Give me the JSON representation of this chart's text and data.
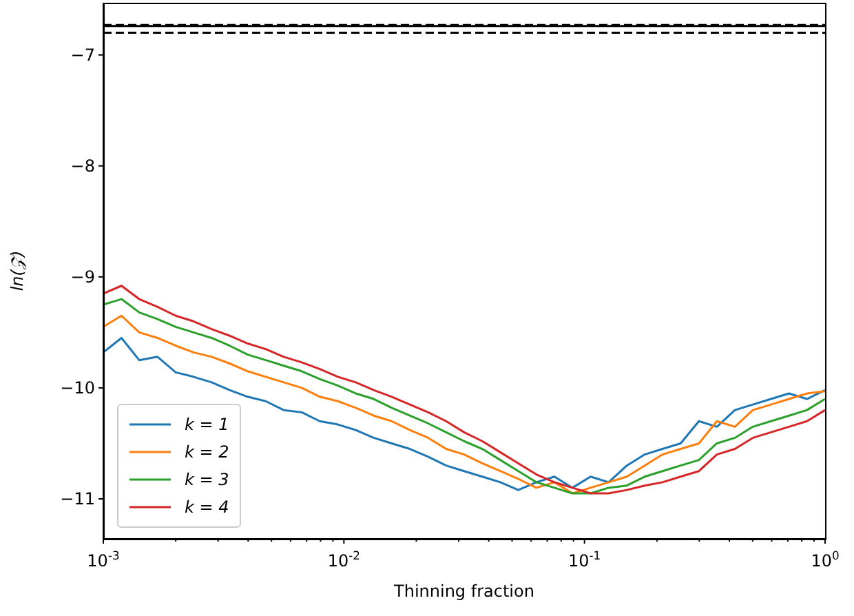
{
  "chart_data": {
    "type": "line",
    "xlabel": "Thinning fraction",
    "ylabel": "ln(𝒵)",
    "log": "x",
    "grid": false,
    "legend": "bottom left",
    "marker": "none",
    "line_style": "solid",
    "xlim": [
      0.001,
      1
    ],
    "ylim": [
      -11.36,
      -6.53
    ],
    "xticks": [
      {
        "value": 0.001,
        "label": "10$^{-3}$"
      },
      {
        "value": 0.002,
        "label": null
      },
      {
        "value": 0.003,
        "label": null
      },
      {
        "value": 0.004,
        "label": null
      },
      {
        "value": 0.005,
        "label": null
      },
      {
        "value": 0.006,
        "label": null
      },
      {
        "value": 0.007,
        "label": null
      },
      {
        "value": 0.008,
        "label": null
      },
      {
        "value": 0.009,
        "label": null
      },
      {
        "value": 0.01,
        "label": "10$^{-2}$"
      },
      {
        "value": 0.02,
        "label": null
      },
      {
        "value": 0.03,
        "label": null
      },
      {
        "value": 0.04,
        "label": null
      },
      {
        "value": 0.05,
        "label": null
      },
      {
        "value": 0.06,
        "label": null
      },
      {
        "value": 0.07,
        "label": null
      },
      {
        "value": 0.08,
        "label": null
      },
      {
        "value": 0.09,
        "label": null
      },
      {
        "value": 0.1,
        "label": "10$^{-1}$"
      },
      {
        "value": 0.2,
        "label": null
      },
      {
        "value": 0.3,
        "label": null
      },
      {
        "value": 0.4,
        "label": null
      },
      {
        "value": 0.5,
        "label": null
      },
      {
        "value": 0.6,
        "label": null
      },
      {
        "value": 0.7,
        "label": null
      },
      {
        "value": 0.8,
        "label": null
      },
      {
        "value": 0.9,
        "label": null
      },
      {
        "value": 1,
        "label": "10$^{0}$"
      }
    ],
    "yticks": [
      -11,
      -10,
      -9,
      -8,
      -7
    ],
    "x": [
      0.001,
      0.00119,
      0.00141,
      0.00168,
      0.002,
      0.00237,
      0.00282,
      0.00335,
      0.00398,
      0.00473,
      0.00562,
      0.00668,
      0.00794,
      0.00944,
      0.0112,
      0.0133,
      0.0158,
      0.0188,
      0.0224,
      0.0266,
      0.0316,
      0.0376,
      0.0447,
      0.0531,
      0.0631,
      0.075,
      0.0891,
      0.106,
      0.126,
      0.15,
      0.178,
      0.211,
      0.251,
      0.299,
      0.355,
      0.422,
      0.501,
      0.596,
      0.708,
      0.841,
      1.0
    ],
    "series": [
      {
        "name": "k = 1",
        "color": "#1f77b4",
        "values": [
          -9.68,
          -9.55,
          -9.75,
          -9.72,
          -9.86,
          -9.9,
          -9.95,
          -10.02,
          -10.08,
          -10.12,
          -10.2,
          -10.22,
          -10.3,
          -10.33,
          -10.38,
          -10.45,
          -10.5,
          -10.55,
          -10.62,
          -10.7,
          -10.75,
          -10.8,
          -10.85,
          -10.92,
          -10.85,
          -10.8,
          -10.9,
          -10.8,
          -10.85,
          -10.7,
          -10.6,
          -10.55,
          -10.5,
          -10.3,
          -10.35,
          -10.2,
          -10.15,
          -10.1,
          -10.05,
          -10.1,
          -10.02
        ]
      },
      {
        "name": "k = 2",
        "color": "#ff7f0e",
        "values": [
          -9.45,
          -9.35,
          -9.5,
          -9.55,
          -9.62,
          -9.68,
          -9.72,
          -9.78,
          -9.85,
          -9.9,
          -9.95,
          -10.0,
          -10.08,
          -10.12,
          -10.18,
          -10.25,
          -10.3,
          -10.38,
          -10.45,
          -10.55,
          -10.6,
          -10.68,
          -10.75,
          -10.82,
          -10.9,
          -10.85,
          -10.95,
          -10.9,
          -10.85,
          -10.8,
          -10.7,
          -10.6,
          -10.55,
          -10.5,
          -10.3,
          -10.35,
          -10.2,
          -10.15,
          -10.1,
          -10.05,
          -10.03
        ]
      },
      {
        "name": "k = 3",
        "color": "#2ca02c",
        "values": [
          -9.25,
          -9.2,
          -9.32,
          -9.38,
          -9.45,
          -9.5,
          -9.55,
          -9.62,
          -9.7,
          -9.75,
          -9.8,
          -9.85,
          -9.92,
          -9.98,
          -10.05,
          -10.1,
          -10.18,
          -10.25,
          -10.32,
          -10.4,
          -10.48,
          -10.55,
          -10.65,
          -10.75,
          -10.85,
          -10.9,
          -10.95,
          -10.95,
          -10.9,
          -10.88,
          -10.8,
          -10.75,
          -10.7,
          -10.65,
          -10.5,
          -10.45,
          -10.35,
          -10.3,
          -10.25,
          -10.2,
          -10.1
        ]
      },
      {
        "name": "k = 4",
        "color": "#d62728",
        "values": [
          -9.15,
          -9.08,
          -9.2,
          -9.27,
          -9.35,
          -9.4,
          -9.47,
          -9.53,
          -9.6,
          -9.65,
          -9.72,
          -9.77,
          -9.83,
          -9.9,
          -9.95,
          -10.02,
          -10.08,
          -10.15,
          -10.22,
          -10.3,
          -10.4,
          -10.48,
          -10.58,
          -10.68,
          -10.78,
          -10.85,
          -10.9,
          -10.95,
          -10.95,
          -10.92,
          -10.88,
          -10.85,
          -10.8,
          -10.75,
          -10.6,
          -10.55,
          -10.45,
          -10.4,
          -10.35,
          -10.3,
          -10.2
        ]
      }
    ],
    "ref_lines": [
      {
        "axis": "y",
        "value": -6.74,
        "color": "#000000",
        "line_style": "solid"
      },
      {
        "axis": "y",
        "value": -6.73,
        "color": "#000000",
        "line_style": "dashed"
      },
      {
        "axis": "y",
        "value": -6.8,
        "color": "#000000",
        "line_style": "dashed"
      }
    ]
  }
}
